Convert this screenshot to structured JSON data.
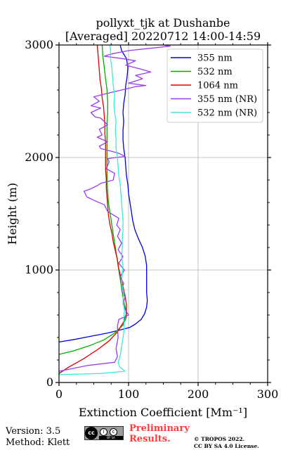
{
  "chart_data": {
    "type": "line",
    "title": [
      "pollyxt_tjk at Dushanbe",
      "[Averaged] 20220712 14:00-14:59"
    ],
    "xlabel": "Extinction Coefficient [Mm⁻¹]",
    "ylabel": "Height (m)",
    "xlim": [
      0,
      300
    ],
    "ylim": [
      0,
      3000
    ],
    "xticks": [
      0,
      100,
      200,
      300
    ],
    "yticks": [
      0,
      1000,
      2000,
      3000
    ],
    "grid": true,
    "legend_position": "top-right",
    "series": [
      {
        "name": "355 nm",
        "color": "#0000dd",
        "points": [
          [
            0,
            360
          ],
          [
            20,
            380
          ],
          [
            45,
            410
          ],
          [
            70,
            440
          ],
          [
            90,
            470
          ],
          [
            102,
            490
          ],
          [
            110,
            520
          ],
          [
            118,
            560
          ],
          [
            123,
            610
          ],
          [
            126,
            670
          ],
          [
            127,
            730
          ],
          [
            126,
            800
          ],
          [
            126,
            880
          ],
          [
            126,
            960
          ],
          [
            126,
            1040
          ],
          [
            124,
            1120
          ],
          [
            120,
            1200
          ],
          [
            114,
            1280
          ],
          [
            109,
            1360
          ],
          [
            106,
            1440
          ],
          [
            104,
            1520
          ],
          [
            102,
            1600
          ],
          [
            100,
            1680
          ],
          [
            99,
            1760
          ],
          [
            97,
            1840
          ],
          [
            96,
            1920
          ],
          [
            95,
            2000
          ],
          [
            93,
            2080
          ],
          [
            92,
            2160
          ],
          [
            92,
            2240
          ],
          [
            93,
            2320
          ],
          [
            92,
            2400
          ],
          [
            93,
            2480
          ],
          [
            95,
            2560
          ],
          [
            96,
            2640
          ],
          [
            98,
            2720
          ],
          [
            99,
            2800
          ],
          [
            97,
            2880
          ],
          [
            90,
            2950
          ],
          [
            88,
            3000
          ]
        ]
      },
      {
        "name": "532 nm",
        "color": "#00b000",
        "points": [
          [
            0,
            250
          ],
          [
            20,
            280
          ],
          [
            45,
            330
          ],
          [
            65,
            380
          ],
          [
            80,
            440
          ],
          [
            92,
            510
          ],
          [
            97,
            580
          ],
          [
            96,
            650
          ],
          [
            93,
            720
          ],
          [
            91,
            800
          ],
          [
            89,
            880
          ],
          [
            87,
            960
          ],
          [
            85,
            1040
          ],
          [
            83,
            1120
          ],
          [
            81,
            1200
          ],
          [
            79,
            1280
          ],
          [
            77,
            1360
          ],
          [
            75,
            1440
          ],
          [
            73,
            1520
          ],
          [
            71,
            1600
          ],
          [
            70,
            1700
          ],
          [
            69,
            1800
          ],
          [
            69,
            1900
          ],
          [
            69,
            2000
          ],
          [
            69,
            2100
          ],
          [
            69,
            2200
          ],
          [
            69,
            2300
          ],
          [
            70,
            2400
          ],
          [
            70,
            2500
          ],
          [
            69,
            2600
          ],
          [
            67,
            2700
          ],
          [
            65,
            2800
          ],
          [
            63,
            2900
          ],
          [
            62,
            3000
          ]
        ]
      },
      {
        "name": "1064 nm",
        "color": "#dd0000",
        "points": [
          [
            0,
            80
          ],
          [
            15,
            140
          ],
          [
            35,
            210
          ],
          [
            55,
            290
          ],
          [
            72,
            370
          ],
          [
            84,
            450
          ],
          [
            92,
            530
          ],
          [
            97,
            610
          ],
          [
            97,
            690
          ],
          [
            95,
            770
          ],
          [
            92,
            850
          ],
          [
            89,
            930
          ],
          [
            86,
            1010
          ],
          [
            84,
            1090
          ],
          [
            81,
            1170
          ],
          [
            78,
            1250
          ],
          [
            76,
            1330
          ],
          [
            73,
            1410
          ],
          [
            71,
            1490
          ],
          [
            70,
            1570
          ],
          [
            69,
            1650
          ],
          [
            68,
            1730
          ],
          [
            68,
            1810
          ],
          [
            67,
            1890
          ],
          [
            67,
            1970
          ],
          [
            67,
            2050
          ],
          [
            67,
            2130
          ],
          [
            66,
            2210
          ],
          [
            66,
            2290
          ],
          [
            65,
            2370
          ],
          [
            64,
            2450
          ],
          [
            62,
            2530
          ],
          [
            61,
            2610
          ],
          [
            59,
            2690
          ],
          [
            58,
            2770
          ],
          [
            57,
            2850
          ],
          [
            56,
            2930
          ],
          [
            55,
            3000
          ]
        ]
      },
      {
        "name": "355 nm (NR)",
        "color": "#9a3cf0",
        "points": [
          [
            0,
            100
          ],
          [
            40,
            150
          ],
          [
            80,
            180
          ],
          [
            84,
            230
          ],
          [
            82,
            300
          ],
          [
            85,
            400
          ],
          [
            84,
            500
          ],
          [
            86,
            560
          ],
          [
            100,
            600
          ],
          [
            96,
            640
          ],
          [
            92,
            700
          ],
          [
            95,
            760
          ],
          [
            90,
            820
          ],
          [
            93,
            880
          ],
          [
            88,
            940
          ],
          [
            94,
            1000
          ],
          [
            86,
            1060
          ],
          [
            92,
            1120
          ],
          [
            85,
            1180
          ],
          [
            90,
            1240
          ],
          [
            84,
            1300
          ],
          [
            88,
            1360
          ],
          [
            83,
            1400
          ],
          [
            86,
            1460
          ],
          [
            70,
            1520
          ],
          [
            65,
            1580
          ],
          [
            50,
            1620
          ],
          [
            40,
            1650
          ],
          [
            36,
            1700
          ],
          [
            45,
            1720
          ],
          [
            55,
            1750
          ],
          [
            60,
            1770
          ],
          [
            78,
            1800
          ],
          [
            80,
            1860
          ],
          [
            68,
            1900
          ],
          [
            72,
            1960
          ],
          [
            70,
            1990
          ],
          [
            95,
            2010
          ],
          [
            85,
            2040
          ],
          [
            60,
            2080
          ],
          [
            58,
            2100
          ],
          [
            70,
            2140
          ],
          [
            55,
            2180
          ],
          [
            62,
            2200
          ],
          [
            58,
            2250
          ],
          [
            70,
            2290
          ],
          [
            60,
            2350
          ],
          [
            52,
            2360
          ],
          [
            46,
            2400
          ],
          [
            60,
            2440
          ],
          [
            46,
            2460
          ],
          [
            58,
            2500
          ],
          [
            50,
            2540
          ],
          [
            76,
            2580
          ],
          [
            90,
            2600
          ],
          [
            110,
            2630
          ],
          [
            125,
            2640
          ],
          [
            100,
            2660
          ],
          [
            120,
            2700
          ],
          [
            110,
            2730
          ],
          [
            132,
            2760
          ],
          [
            115,
            2790
          ],
          [
            96,
            2820
          ],
          [
            110,
            2860
          ],
          [
            90,
            2880
          ],
          [
            65,
            2900
          ],
          [
            75,
            2920
          ],
          [
            100,
            2950
          ],
          [
            130,
            2970
          ],
          [
            160,
            2990
          ],
          [
            150,
            3000
          ]
        ]
      },
      {
        "name": "532 nm (NR)",
        "color": "#40e8d8",
        "points": [
          [
            0,
            70
          ],
          [
            60,
            80
          ],
          [
            95,
            100
          ],
          [
            87,
            140
          ],
          [
            85,
            180
          ],
          [
            88,
            240
          ],
          [
            90,
            320
          ],
          [
            92,
            400
          ],
          [
            94,
            480
          ],
          [
            93,
            560
          ],
          [
            94,
            640
          ],
          [
            92,
            720
          ],
          [
            93,
            800
          ],
          [
            90,
            880
          ],
          [
            91,
            960
          ],
          [
            92,
            1040
          ],
          [
            90,
            1120
          ],
          [
            91,
            1200
          ],
          [
            91,
            1280
          ],
          [
            92,
            1360
          ],
          [
            92,
            1440
          ],
          [
            91,
            1520
          ],
          [
            90,
            1600
          ],
          [
            89,
            1680
          ],
          [
            88,
            1760
          ],
          [
            86,
            1840
          ],
          [
            85,
            1920
          ],
          [
            84,
            2000
          ],
          [
            82,
            2080
          ],
          [
            82,
            2160
          ],
          [
            81,
            2240
          ],
          [
            82,
            2320
          ],
          [
            80,
            2400
          ],
          [
            79,
            2480
          ],
          [
            80,
            2560
          ],
          [
            78,
            2640
          ],
          [
            77,
            2720
          ],
          [
            76,
            2800
          ],
          [
            74,
            2880
          ],
          [
            74,
            2960
          ],
          [
            73,
            3000
          ]
        ]
      }
    ]
  },
  "footer": {
    "version": "Version: 3.5",
    "method": "Method: Klett",
    "badge": {
      "left": "cc",
      "strip": "BY  SA"
    },
    "preliminary_1": "Preliminary",
    "preliminary_2": "Results.",
    "license_1": "© TROPOS 2022.",
    "license_2": "CC BY SA 4.0 License."
  }
}
